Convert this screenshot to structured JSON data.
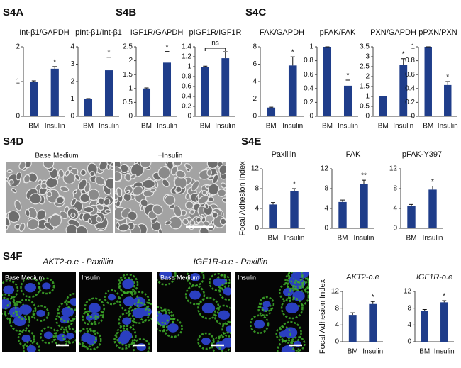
{
  "labels": {
    "panels": [
      "S4A",
      "S4B",
      "S4C",
      "S4D",
      "S4E",
      "S4F"
    ],
    "s4d_images": [
      "Base Medium",
      "+Insulin"
    ],
    "s4f_groups": [
      "AKT2-o.e - Paxillin",
      "IGF1R-o.e - Paxillin"
    ],
    "s4f_images": [
      "Base Medium",
      "Insulin",
      "Base Medium",
      "Insulin"
    ]
  },
  "chart_data": [
    {
      "type": "bar",
      "title": "Int-β1/GAPDH",
      "categories": [
        "BM",
        "Insulin"
      ],
      "values": [
        1,
        1.37
      ],
      "errors": [
        0.02,
        0.06
      ],
      "color": "#1f3d8a",
      "ylim": [
        0,
        2
      ],
      "yticks": [
        0,
        1,
        2
      ],
      "annotations": [
        {
          "category": "Insulin",
          "text": "*"
        }
      ]
    },
    {
      "type": "bar",
      "title": "pInt-β1/Int-β1",
      "categories": [
        "BM",
        "Insulin"
      ],
      "values": [
        1,
        2.65
      ],
      "errors": [
        0.02,
        0.75
      ],
      "color": "#1f3d8a",
      "ylim": [
        0,
        4
      ],
      "yticks": [
        0,
        1,
        2,
        3,
        4
      ],
      "annotations": [
        {
          "category": "Insulin",
          "text": "*"
        }
      ]
    },
    {
      "type": "bar",
      "title": "IGF1R/GAPDH",
      "categories": [
        "BM",
        "Insulin"
      ],
      "values": [
        1,
        1.93
      ],
      "errors": [
        0.02,
        0.4
      ],
      "color": "#1f3d8a",
      "ylim": [
        0,
        2.5
      ],
      "yticks": [
        0,
        0.5,
        1,
        1.5,
        2,
        2.5
      ],
      "annotations": [
        {
          "category": "Insulin",
          "text": "*"
        }
      ]
    },
    {
      "type": "bar",
      "title": "pIGF1R/IGF1R",
      "categories": [
        "BM",
        "Insulin"
      ],
      "values": [
        1,
        1.17
      ],
      "errors": [
        0.01,
        0.13
      ],
      "color": "#1f3d8a",
      "ylim": [
        0,
        1.4
      ],
      "yticks": [
        0,
        0.2,
        0.4,
        0.6,
        0.8,
        1,
        1.2,
        1.4
      ],
      "annotations": [
        {
          "span": [
            "BM",
            "Insulin"
          ],
          "text": "ns"
        }
      ]
    },
    {
      "type": "bar",
      "title": "FAK/GAPDH",
      "categories": [
        "BM",
        "Insulin"
      ],
      "values": [
        1,
        5.85
      ],
      "errors": [
        0.05,
        1.0
      ],
      "color": "#1f3d8a",
      "ylim": [
        0,
        8
      ],
      "yticks": [
        0,
        2,
        4,
        6,
        8
      ],
      "annotations": [
        {
          "category": "Insulin",
          "text": "*"
        }
      ]
    },
    {
      "type": "bar",
      "title": "pFAK/FAK",
      "categories": [
        "BM",
        "Insulin"
      ],
      "values": [
        1,
        0.44
      ],
      "errors": [
        0,
        0.08
      ],
      "color": "#1f3d8a",
      "ylim": [
        0,
        1
      ],
      "yticks": [
        0,
        0.2,
        0.4,
        0.6,
        0.8,
        1
      ],
      "annotations": [
        {
          "category": "Insulin",
          "text": "*"
        }
      ]
    },
    {
      "type": "bar",
      "title": "PXN/GAPDH",
      "categories": [
        "BM",
        "Insulin"
      ],
      "values": [
        1,
        2.6
      ],
      "errors": [
        0.02,
        0.3
      ],
      "color": "#1f3d8a",
      "ylim": [
        0,
        3.5
      ],
      "yticks": [
        0,
        0.5,
        1,
        1.5,
        2,
        2.5,
        3,
        3.5
      ],
      "annotations": [
        {
          "category": "Insulin",
          "text": "*"
        }
      ]
    },
    {
      "type": "bar",
      "title": "pPXN/PXN",
      "categories": [
        "BM",
        "Insulin"
      ],
      "values": [
        1,
        0.45
      ],
      "errors": [
        0,
        0.05
      ],
      "color": "#1f3d8a",
      "ylim": [
        0,
        1
      ],
      "yticks": [
        0,
        0.2,
        0.4,
        0.6,
        0.8,
        1
      ],
      "annotations": [
        {
          "category": "Insulin",
          "text": "*"
        }
      ]
    },
    {
      "type": "bar",
      "title": "Paxillin",
      "y_label": "Focal Adhesion Index",
      "categories": [
        "BM",
        "Insulin"
      ],
      "values": [
        4.8,
        7.5
      ],
      "errors": [
        0.4,
        0.5
      ],
      "color": "#1f3d8a",
      "ylim": [
        0,
        12
      ],
      "yticks": [
        0,
        4,
        8,
        12
      ],
      "annotations": [
        {
          "category": "Insulin",
          "text": "*"
        }
      ]
    },
    {
      "type": "bar",
      "title": "FAK",
      "categories": [
        "BM",
        "Insulin"
      ],
      "values": [
        5.3,
        8.9
      ],
      "errors": [
        0.4,
        0.8
      ],
      "color": "#1f3d8a",
      "ylim": [
        0,
        12
      ],
      "yticks": [
        0,
        4,
        8,
        12
      ],
      "annotations": [
        {
          "category": "Insulin",
          "text": "**"
        }
      ]
    },
    {
      "type": "bar",
      "title": "pFAK-Y397",
      "categories": [
        "BM",
        "Insulin"
      ],
      "values": [
        4.5,
        7.8
      ],
      "errors": [
        0.3,
        0.7
      ],
      "color": "#1f3d8a",
      "ylim": [
        0,
        12
      ],
      "yticks": [
        0,
        4,
        8,
        12
      ],
      "annotations": [
        {
          "category": "Insulin",
          "text": "*"
        }
      ]
    },
    {
      "type": "bar",
      "title": "AKT2-o.e",
      "y_label": "Focal Adhesion Index",
      "categories": [
        "BM",
        "Insulin"
      ],
      "values": [
        6.4,
        9.0
      ],
      "errors": [
        0.5,
        0.6
      ],
      "color": "#1f3d8a",
      "ylim": [
        0,
        12
      ],
      "yticks": [
        0,
        4,
        8,
        12
      ],
      "annotations": [
        {
          "category": "Insulin",
          "text": "*"
        }
      ]
    },
    {
      "type": "bar",
      "title": "IGF1R-o.e",
      "categories": [
        "BM",
        "Insulin"
      ],
      "values": [
        7.3,
        9.4
      ],
      "errors": [
        0.4,
        0.4
      ],
      "color": "#1f3d8a",
      "ylim": [
        0,
        12
      ],
      "yticks": [
        0,
        4,
        8,
        12
      ],
      "annotations": [
        {
          "category": "Insulin",
          "text": "*"
        }
      ]
    }
  ]
}
